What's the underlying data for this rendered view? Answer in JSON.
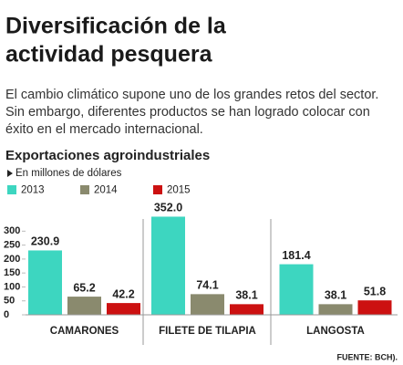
{
  "title_lines": [
    "Diversificación de la",
    "actividad pesquera"
  ],
  "intro_lines": [
    "El cambio climático supone uno de los grandes retos del sector.",
    "Sin embargo, diferentes productos se han logrado colocar con",
    "éxito en el mercado internacional."
  ],
  "chart_data": {
    "type": "bar",
    "title": "Exportaciones agroindustriales",
    "subtitle": "En millones de dólares",
    "categories": [
      "CAMARONES",
      "FILETE DE TILAPIA",
      "LANGOSTA"
    ],
    "series": [
      {
        "name": "2013",
        "color": "#3dd6c0",
        "values": [
          230.9,
          352,
          181.4
        ],
        "value_labels": [
          "230.9",
          "352.0",
          "181.4"
        ]
      },
      {
        "name": "2014",
        "color": "#8a8a6e",
        "values": [
          65.2,
          74.1,
          38.1
        ],
        "value_labels": [
          "65.2",
          "74.1",
          "38.1"
        ]
      },
      {
        "name": "2015",
        "color": "#cc1111",
        "values": [
          42.2,
          38.1,
          51.8
        ],
        "value_labels": [
          "42.2",
          "38.1",
          "51.8"
        ]
      }
    ],
    "ylim": [
      0,
      360
    ],
    "yticks": [
      0,
      50,
      100,
      150,
      200,
      250,
      300
    ],
    "grid": false,
    "legend": "top-left"
  },
  "footer": "FUENTE: BCH)."
}
